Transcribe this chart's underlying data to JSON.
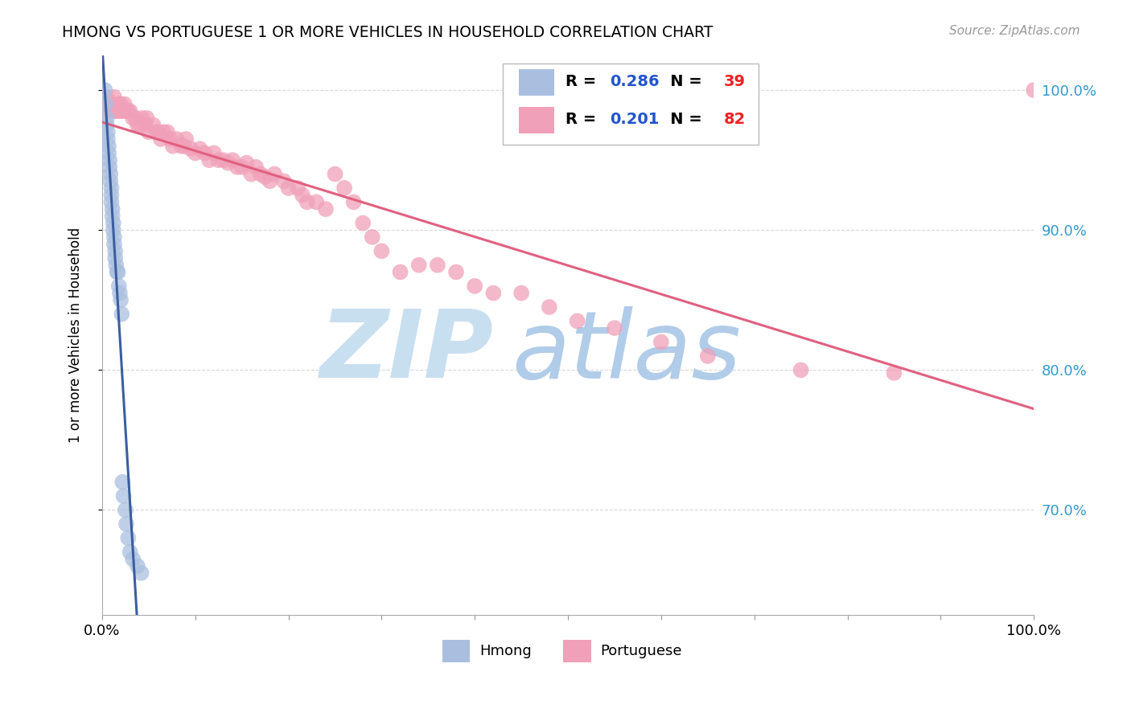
{
  "title": "HMONG VS PORTUGUESE 1 OR MORE VEHICLES IN HOUSEHOLD CORRELATION CHART",
  "source": "Source: ZipAtlas.com",
  "ylabel": "1 or more Vehicles in Household",
  "xlim": [
    0.0,
    1.0
  ],
  "ylim": [
    0.625,
    1.025
  ],
  "hmong_color": "#aabfdf",
  "portuguese_color": "#f0a0b8",
  "hmong_line_color": "#3a5fa0",
  "portuguese_line_color": "#e06080",
  "hmong_R": 0.286,
  "hmong_N": 39,
  "portuguese_R": 0.201,
  "portuguese_N": 82,
  "watermark_zip": "ZIP",
  "watermark_atlas": "atlas",
  "watermark_color_zip": "#c8dff0",
  "watermark_color_atlas": "#b0cce8",
  "background_color": "#ffffff",
  "grid_color": "#d8d8d8",
  "legend_R_color": "#2255cc",
  "legend_N_color": "#ee2222",
  "right_axis_color": "#3399cc",
  "hmong_x": [
    0.003,
    0.004,
    0.005,
    0.005,
    0.006,
    0.006,
    0.007,
    0.007,
    0.008,
    0.008,
    0.009,
    0.009,
    0.01,
    0.01,
    0.01,
    0.011,
    0.011,
    0.012,
    0.012,
    0.013,
    0.013,
    0.014,
    0.014,
    0.015,
    0.016,
    0.017,
    0.018,
    0.019,
    0.02,
    0.021,
    0.022,
    0.023,
    0.025,
    0.026,
    0.028,
    0.03,
    0.033,
    0.038,
    0.042
  ],
  "hmong_y": [
    1.0,
    0.99,
    0.98,
    0.975,
    0.97,
    0.965,
    0.96,
    0.955,
    0.95,
    0.945,
    0.94,
    0.935,
    0.93,
    0.925,
    0.92,
    0.915,
    0.91,
    0.905,
    0.9,
    0.895,
    0.89,
    0.885,
    0.88,
    0.875,
    0.87,
    0.87,
    0.86,
    0.855,
    0.85,
    0.84,
    0.72,
    0.71,
    0.7,
    0.69,
    0.68,
    0.67,
    0.665,
    0.66,
    0.655
  ],
  "portuguese_x": [
    0.003,
    0.004,
    0.005,
    0.01,
    0.012,
    0.013,
    0.015,
    0.017,
    0.019,
    0.02,
    0.022,
    0.024,
    0.026,
    0.028,
    0.03,
    0.033,
    0.036,
    0.038,
    0.04,
    0.043,
    0.046,
    0.048,
    0.05,
    0.055,
    0.058,
    0.06,
    0.063,
    0.066,
    0.07,
    0.073,
    0.076,
    0.08,
    0.085,
    0.088,
    0.09,
    0.095,
    0.1,
    0.105,
    0.11,
    0.115,
    0.12,
    0.125,
    0.13,
    0.135,
    0.14,
    0.145,
    0.15,
    0.155,
    0.16,
    0.165,
    0.17,
    0.175,
    0.18,
    0.185,
    0.195,
    0.2,
    0.21,
    0.215,
    0.22,
    0.23,
    0.24,
    0.25,
    0.26,
    0.27,
    0.28,
    0.29,
    0.3,
    0.32,
    0.34,
    0.36,
    0.38,
    0.4,
    0.42,
    0.45,
    0.48,
    0.51,
    0.55,
    0.6,
    0.65,
    0.75,
    0.85,
    1.0
  ],
  "portuguese_y": [
    0.99,
    0.985,
    0.995,
    0.99,
    0.985,
    0.995,
    0.985,
    0.99,
    0.985,
    0.99,
    0.985,
    0.99,
    0.985,
    0.985,
    0.985,
    0.98,
    0.98,
    0.975,
    0.975,
    0.98,
    0.975,
    0.98,
    0.97,
    0.975,
    0.97,
    0.97,
    0.965,
    0.97,
    0.97,
    0.965,
    0.96,
    0.965,
    0.96,
    0.96,
    0.965,
    0.958,
    0.955,
    0.958,
    0.955,
    0.95,
    0.955,
    0.95,
    0.95,
    0.948,
    0.95,
    0.945,
    0.945,
    0.948,
    0.94,
    0.945,
    0.94,
    0.938,
    0.935,
    0.94,
    0.935,
    0.93,
    0.93,
    0.925,
    0.92,
    0.92,
    0.915,
    0.94,
    0.93,
    0.92,
    0.905,
    0.895,
    0.885,
    0.87,
    0.875,
    0.875,
    0.87,
    0.86,
    0.855,
    0.855,
    0.845,
    0.835,
    0.83,
    0.82,
    0.81,
    0.8,
    0.798,
    1.0
  ]
}
